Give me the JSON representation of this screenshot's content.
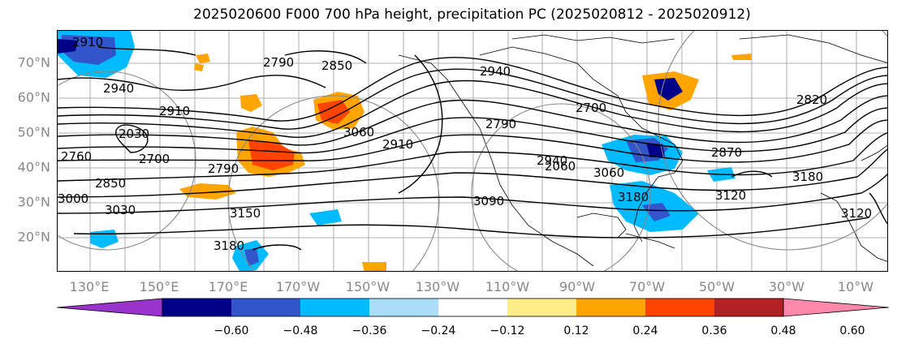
{
  "title": "2025020600 F000 700 hPa height, precipitation PC (2025020812 - 2025020912)",
  "lat_labels": [
    "70°N",
    "60°N",
    "50°N",
    "40°N",
    "30°N",
    "20°N"
  ],
  "lon_labels": [
    "130°E",
    "150°E",
    "170°E",
    "170°W",
    "150°W",
    "130°W",
    "110°W",
    "90°W",
    "70°W",
    "50°W",
    "30°W",
    "10°W"
  ],
  "contour_labels": [
    "2910",
    "2790",
    "2850",
    "2940",
    "2910",
    "2030",
    "2760",
    "2700",
    "2790",
    "2850",
    "3000",
    "3030",
    "3150",
    "3180",
    "3060",
    "2910",
    "3090",
    "2790",
    "2700",
    "2940",
    "3060",
    "3180",
    "2870",
    "3120",
    "3180",
    "3120",
    "2820",
    "2940",
    "2060"
  ],
  "colorbar": {
    "colors": [
      "#9933cc",
      "#000088",
      "#3355cc",
      "#00bbff",
      "#aaddf7",
      "#ffffff",
      "#ffee88",
      "#ffa500",
      "#ff4400",
      "#b22222",
      "#ff88aa"
    ],
    "ticks": [
      "−0.60",
      "−0.48",
      "−0.36",
      "−0.24",
      "−0.12",
      "0.12",
      "0.24",
      "0.36",
      "0.48",
      "0.60"
    ]
  }
}
